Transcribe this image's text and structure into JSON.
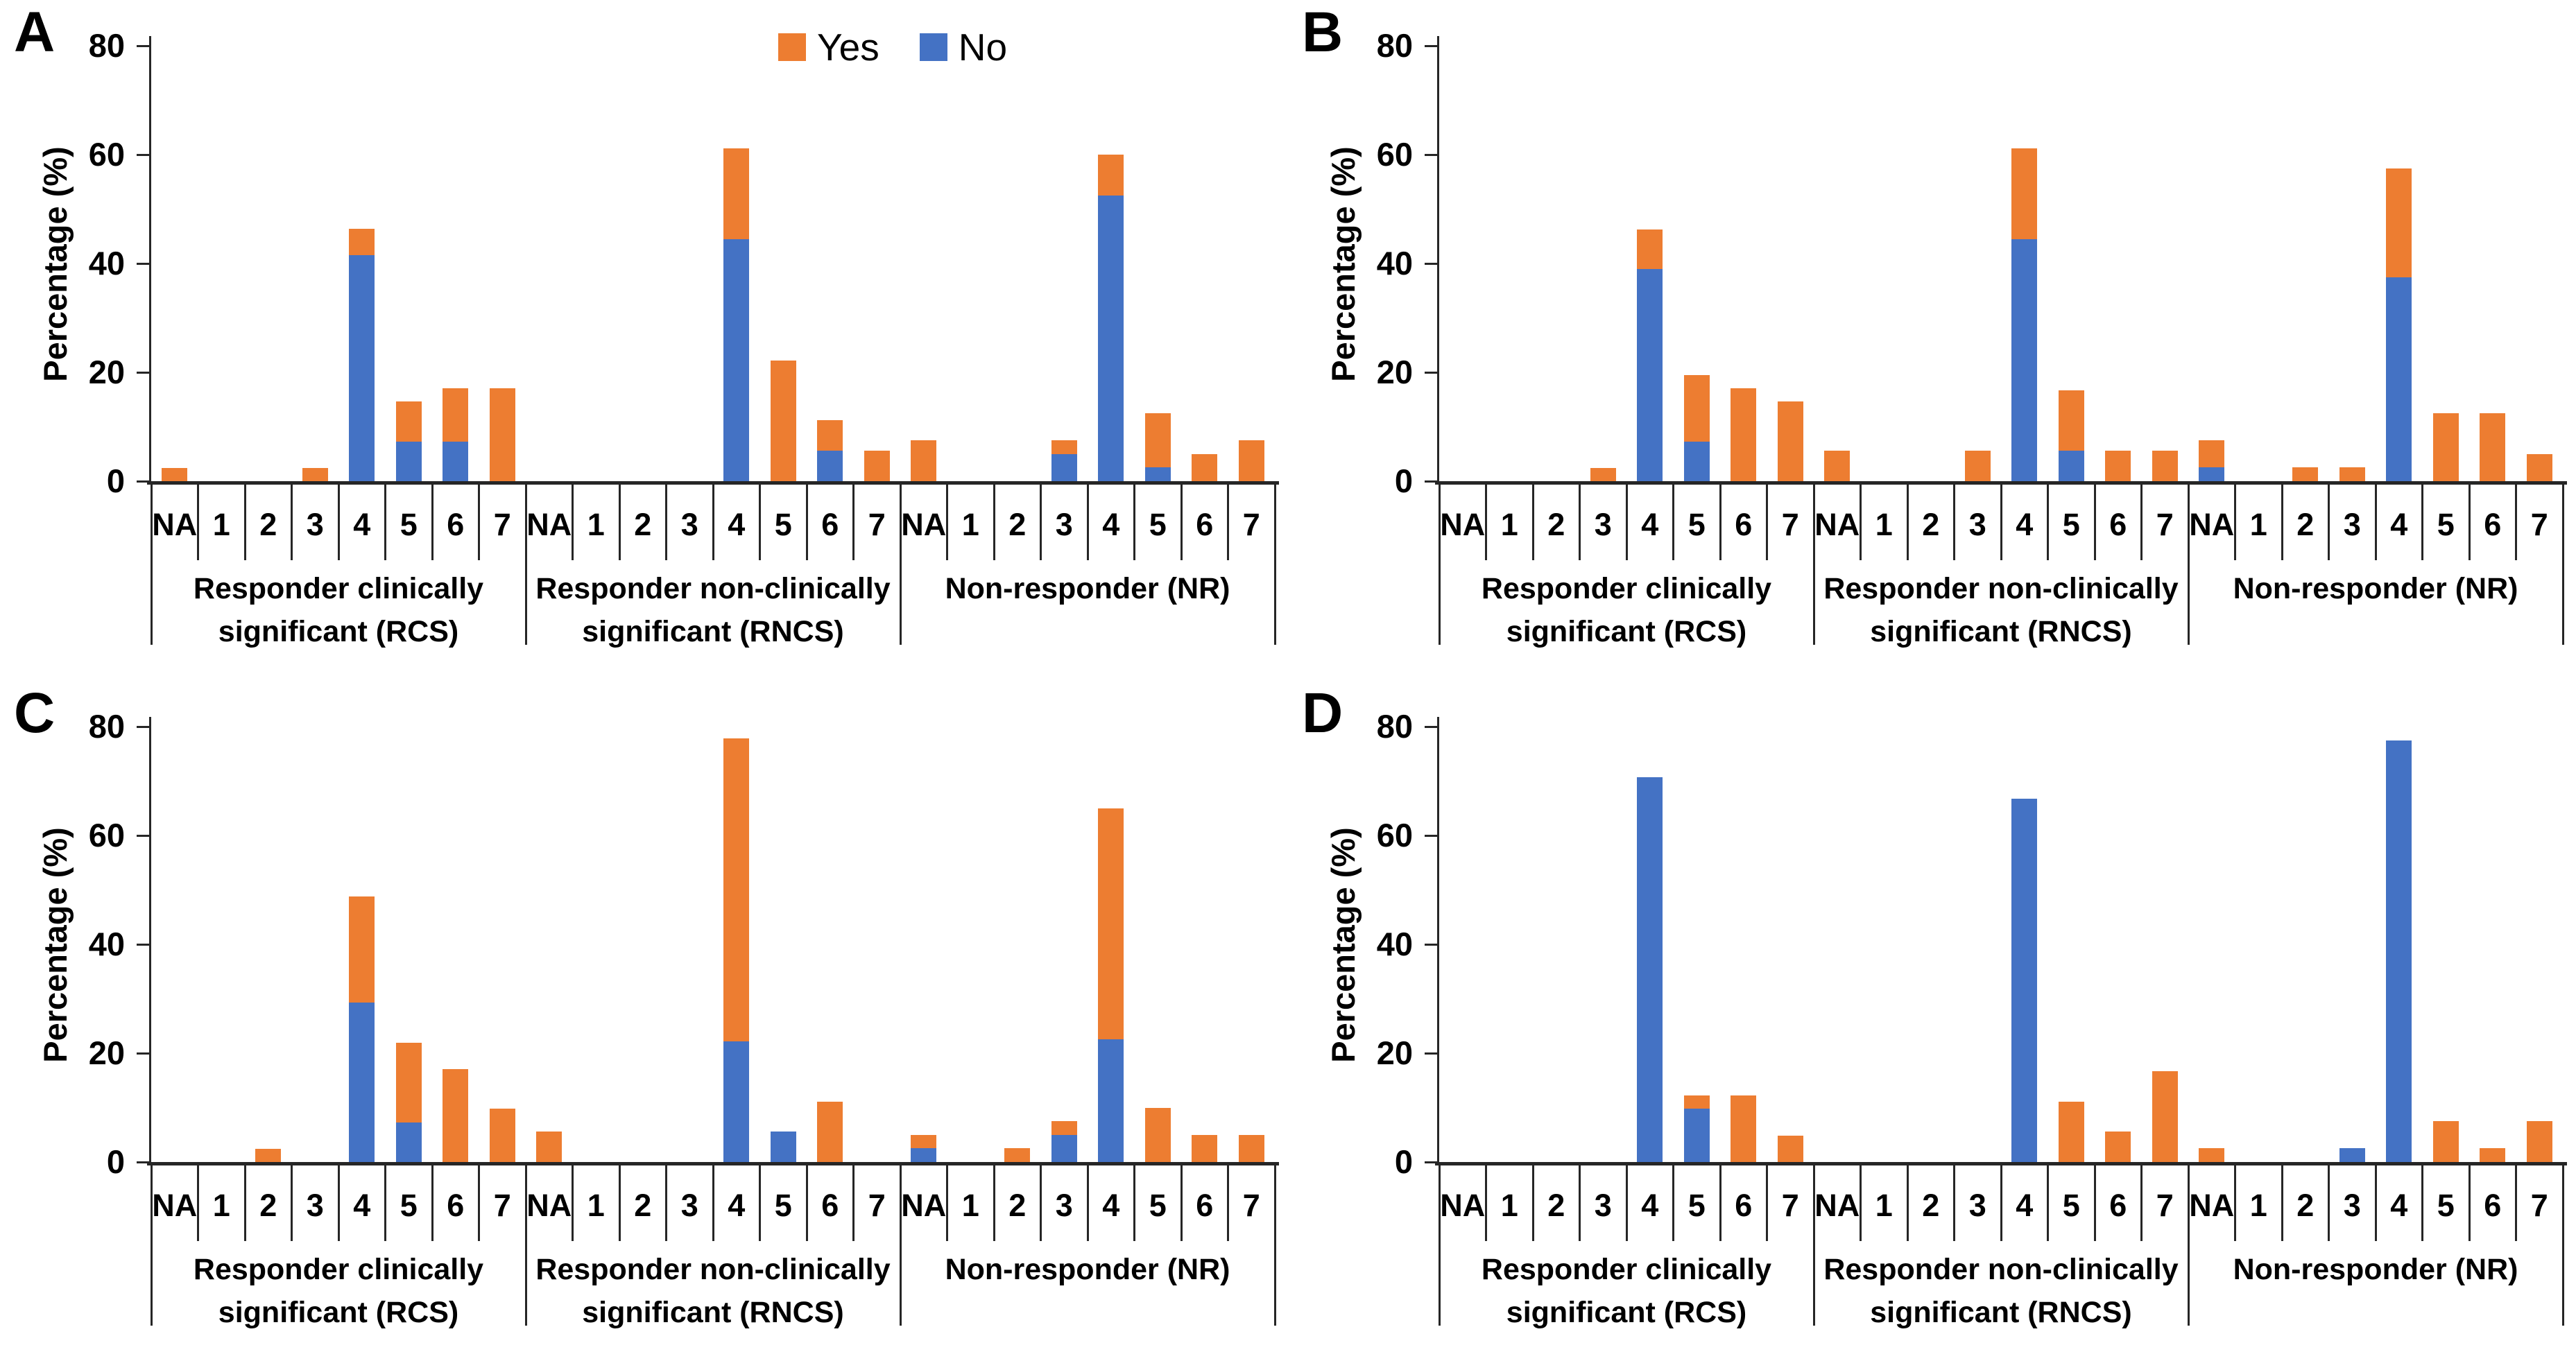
{
  "colors": {
    "yes": "#ED7D31",
    "no": "#4472C4",
    "axis": "#262626",
    "text": "#000000",
    "background": "#ffffff"
  },
  "legend": {
    "items": [
      {
        "label": "Yes",
        "color": "#ED7D31"
      },
      {
        "label": "No",
        "color": "#4472C4"
      }
    ]
  },
  "chart_data": [
    {
      "type": "bar",
      "stacked": true,
      "panel_label": "A",
      "show_legend": true,
      "ylabel": "Percentage (%)",
      "ylim": [
        0,
        80
      ],
      "yticks": [
        0,
        20,
        40,
        60,
        80
      ],
      "categories": [
        "NA",
        "1",
        "2",
        "3",
        "4",
        "5",
        "6",
        "7"
      ],
      "groups": [
        {
          "label": "Responder clinically significant (RCS)",
          "label_lines": [
            "Responder clinically",
            "significant (RCS)"
          ],
          "series": [
            {
              "name": "No",
              "color": "#4472C4",
              "values": [
                0,
                0,
                0,
                0,
                41.5,
                7.3,
                7.3,
                0
              ]
            },
            {
              "name": "Yes",
              "color": "#ED7D31",
              "values": [
                2.4,
                0,
                0,
                2.4,
                4.9,
                7.3,
                9.8,
                17.1
              ]
            }
          ]
        },
        {
          "label": "Responder non-clinically significant (RNCS)",
          "label_lines": [
            "Responder non-clinically",
            "significant (RNCS)"
          ],
          "series": [
            {
              "name": "No",
              "color": "#4472C4",
              "values": [
                0,
                0,
                0,
                0,
                44.4,
                0,
                5.6,
                0
              ]
            },
            {
              "name": "Yes",
              "color": "#ED7D31",
              "values": [
                0,
                0,
                0,
                0,
                16.7,
                22.2,
                5.6,
                5.6
              ]
            }
          ]
        },
        {
          "label": "Non-responder (NR)",
          "label_lines": [
            "Non-responder (NR)"
          ],
          "series": [
            {
              "name": "No",
              "color": "#4472C4",
              "values": [
                0,
                0,
                0,
                5.0,
                52.5,
                2.5,
                0,
                0
              ]
            },
            {
              "name": "Yes",
              "color": "#ED7D31",
              "values": [
                7.5,
                0,
                0,
                2.5,
                7.5,
                10.0,
                5.0,
                7.5
              ]
            }
          ]
        }
      ]
    },
    {
      "type": "bar",
      "stacked": true,
      "panel_label": "B",
      "show_legend": false,
      "ylabel": "Percentage (%)",
      "ylim": [
        0,
        80
      ],
      "yticks": [
        0,
        20,
        40,
        60,
        80
      ],
      "categories": [
        "NA",
        "1",
        "2",
        "3",
        "4",
        "5",
        "6",
        "7"
      ],
      "groups": [
        {
          "label": "Responder clinically significant (RCS)",
          "label_lines": [
            "Responder clinically",
            "significant (RCS)"
          ],
          "series": [
            {
              "name": "No",
              "color": "#4472C4",
              "values": [
                0,
                0,
                0,
                0,
                39.0,
                7.3,
                0,
                0
              ]
            },
            {
              "name": "Yes",
              "color": "#ED7D31",
              "values": [
                0,
                0,
                0,
                2.4,
                7.3,
                12.2,
                17.1,
                14.6
              ]
            }
          ]
        },
        {
          "label": "Responder non-clinically significant (RNCS)",
          "label_lines": [
            "Responder non-clinically",
            "significant (RNCS)"
          ],
          "series": [
            {
              "name": "No",
              "color": "#4472C4",
              "values": [
                0,
                0,
                0,
                0,
                44.4,
                5.6,
                0,
                0
              ]
            },
            {
              "name": "Yes",
              "color": "#ED7D31",
              "values": [
                5.6,
                0,
                0,
                5.6,
                16.7,
                11.1,
                5.6,
                5.6
              ]
            }
          ]
        },
        {
          "label": "Non-responder (NR)",
          "label_lines": [
            "Non-responder (NR)"
          ],
          "series": [
            {
              "name": "No",
              "color": "#4472C4",
              "values": [
                2.5,
                0,
                0,
                0,
                37.5,
                0,
                0,
                0
              ]
            },
            {
              "name": "Yes",
              "color": "#ED7D31",
              "values": [
                5.0,
                0,
                2.5,
                2.5,
                20.0,
                12.5,
                12.5,
                5.0
              ]
            }
          ]
        }
      ]
    },
    {
      "type": "bar",
      "stacked": true,
      "panel_label": "C",
      "show_legend": false,
      "ylabel": "Percentage (%)",
      "ylim": [
        0,
        80
      ],
      "yticks": [
        0,
        20,
        40,
        60,
        80
      ],
      "categories": [
        "NA",
        "1",
        "2",
        "3",
        "4",
        "5",
        "6",
        "7"
      ],
      "groups": [
        {
          "label": "Responder clinically significant (RCS)",
          "label_lines": [
            "Responder clinically",
            "significant (RCS)"
          ],
          "series": [
            {
              "name": "No",
              "color": "#4472C4",
              "values": [
                0,
                0,
                0,
                0,
                29.3,
                7.3,
                0,
                0
              ]
            },
            {
              "name": "Yes",
              "color": "#ED7D31",
              "values": [
                0,
                0,
                2.4,
                0,
                19.5,
                14.6,
                17.1,
                9.8
              ]
            }
          ]
        },
        {
          "label": "Responder non-clinically significant (RNCS)",
          "label_lines": [
            "Responder non-clinically",
            "significant (RNCS)"
          ],
          "series": [
            {
              "name": "No",
              "color": "#4472C4",
              "values": [
                0,
                0,
                0,
                0,
                22.2,
                5.6,
                0,
                0
              ]
            },
            {
              "name": "Yes",
              "color": "#ED7D31",
              "values": [
                5.6,
                0,
                0,
                0,
                55.6,
                0,
                11.1,
                0
              ]
            }
          ]
        },
        {
          "label": "Non-responder (NR)",
          "label_lines": [
            "Non-responder (NR)"
          ],
          "series": [
            {
              "name": "No",
              "color": "#4472C4",
              "values": [
                2.5,
                0,
                0,
                5.0,
                22.5,
                0,
                0,
                0
              ]
            },
            {
              "name": "Yes",
              "color": "#ED7D31",
              "values": [
                2.5,
                0,
                2.5,
                2.5,
                42.5,
                10.0,
                5.0,
                5.0
              ]
            }
          ]
        }
      ]
    },
    {
      "type": "bar",
      "stacked": true,
      "panel_label": "D",
      "show_legend": false,
      "ylabel": "Percentage (%)",
      "ylim": [
        0,
        80
      ],
      "yticks": [
        0,
        20,
        40,
        60,
        80
      ],
      "categories": [
        "NA",
        "1",
        "2",
        "3",
        "4",
        "5",
        "6",
        "7"
      ],
      "groups": [
        {
          "label": "Responder clinically significant (RCS)",
          "label_lines": [
            "Responder clinically",
            "significant (RCS)"
          ],
          "series": [
            {
              "name": "No",
              "color": "#4472C4",
              "values": [
                0,
                0,
                0,
                0,
                70.7,
                9.8,
                0,
                0
              ]
            },
            {
              "name": "Yes",
              "color": "#ED7D31",
              "values": [
                0,
                0,
                0,
                0,
                0,
                2.4,
                12.2,
                4.9
              ]
            }
          ]
        },
        {
          "label": "Responder non-clinically significant (RNCS)",
          "label_lines": [
            "Responder non-clinically",
            "significant (RNCS)"
          ],
          "series": [
            {
              "name": "No",
              "color": "#4472C4",
              "values": [
                0,
                0,
                0,
                0,
                66.7,
                0,
                0,
                0
              ]
            },
            {
              "name": "Yes",
              "color": "#ED7D31",
              "values": [
                0,
                0,
                0,
                0,
                0,
                11.1,
                5.6,
                16.7
              ]
            }
          ]
        },
        {
          "label": "Non-responder (NR)",
          "label_lines": [
            "Non-responder (NR)"
          ],
          "series": [
            {
              "name": "No",
              "color": "#4472C4",
              "values": [
                0,
                0,
                0,
                2.5,
                77.5,
                0,
                0,
                0
              ]
            },
            {
              "name": "Yes",
              "color": "#ED7D31",
              "values": [
                2.5,
                0,
                0,
                0,
                0,
                7.5,
                2.5,
                7.5
              ]
            }
          ]
        }
      ]
    }
  ]
}
